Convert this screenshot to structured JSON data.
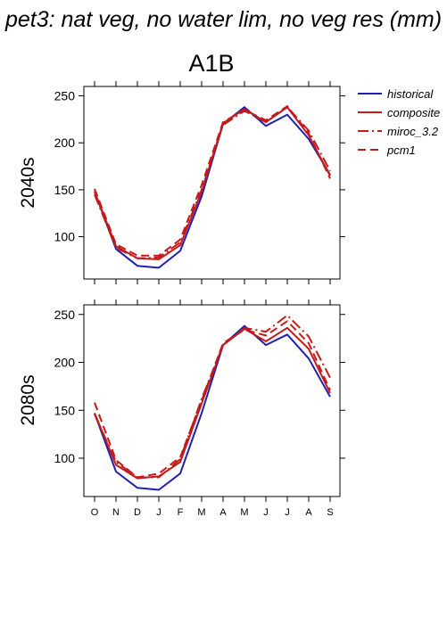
{
  "title": "pet3: nat veg, no water lim, no veg res (mm)",
  "scenario": "A1B",
  "legend": [
    {
      "name": "historical",
      "color": "#1f1fb4",
      "dash": "solid"
    },
    {
      "name": "composite",
      "color": "#c41a1a",
      "dash": "solid"
    },
    {
      "name": "miroc_3.2",
      "color": "#c41a1a",
      "dash": "dashdot"
    },
    {
      "name": "pcm1",
      "color": "#c41a1a",
      "dash": "dashed"
    }
  ],
  "chart_data": [
    {
      "type": "line",
      "row_label": "2040s",
      "categories": [
        "O",
        "N",
        "D",
        "J",
        "F",
        "M",
        "A",
        "M",
        "J",
        "J",
        "A",
        "S"
      ],
      "ylim": [
        55,
        260
      ],
      "yticks": [
        100,
        150,
        200,
        250
      ],
      "series": [
        {
          "name": "historical",
          "values": [
            148,
            87,
            69,
            67,
            85,
            143,
            220,
            238,
            218,
            230,
            204,
            166
          ]
        },
        {
          "name": "composite",
          "values": [
            148,
            90,
            77,
            76,
            91,
            148,
            221,
            236,
            222,
            238,
            208,
            165
          ]
        },
        {
          "name": "miroc_3.2",
          "values": [
            145,
            88,
            77,
            78,
            94,
            150,
            219,
            234,
            222,
            238,
            213,
            170
          ]
        },
        {
          "name": "pcm1",
          "values": [
            151,
            92,
            80,
            80,
            97,
            155,
            222,
            235,
            224,
            239,
            210,
            162
          ]
        }
      ]
    },
    {
      "type": "line",
      "row_label": "2080s",
      "categories": [
        "O",
        "N",
        "D",
        "J",
        "F",
        "M",
        "A",
        "M",
        "J",
        "J",
        "A",
        "S"
      ],
      "ylim": [
        60,
        260
      ],
      "yticks": [
        100,
        150,
        200,
        250
      ],
      "series": [
        {
          "name": "historical",
          "values": [
            147,
            86,
            69,
            67,
            84,
            147,
            218,
            238,
            218,
            229,
            204,
            164
          ]
        },
        {
          "name": "composite",
          "values": [
            147,
            93,
            79,
            81,
            96,
            157,
            218,
            235,
            222,
            236,
            214,
            168
          ]
        },
        {
          "name": "miroc_3.2",
          "values": [
            146,
            96,
            80,
            80,
            99,
            162,
            218,
            236,
            232,
            249,
            227,
            184
          ]
        },
        {
          "name": "pcm1",
          "values": [
            158,
            98,
            80,
            84,
            101,
            160,
            220,
            234,
            228,
            243,
            220,
            171
          ]
        }
      ]
    }
  ]
}
